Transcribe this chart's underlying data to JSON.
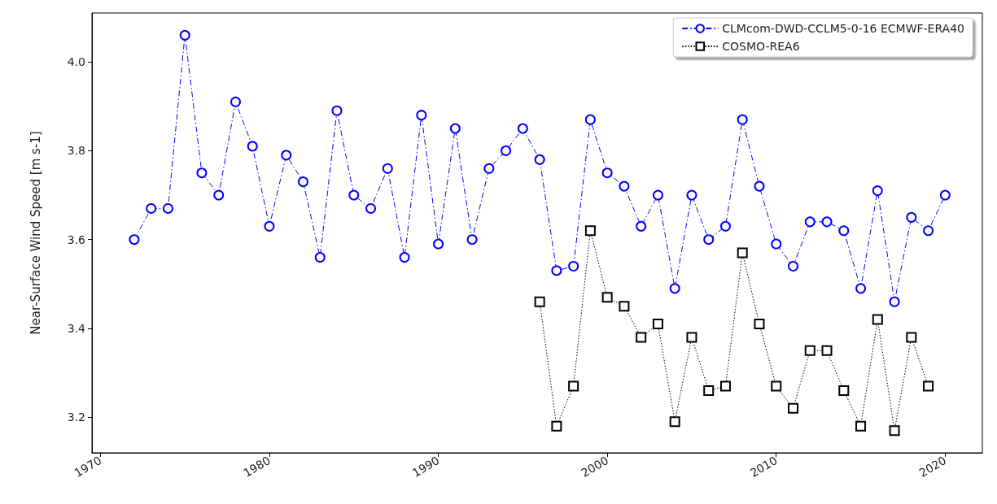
{
  "chart_data": {
    "type": "line",
    "ylabel": "Near-Surface Wind Speed [m s-1]",
    "xlim": [
      1969.5,
      2022.2
    ],
    "xticks": [
      1970,
      1980,
      1990,
      2000,
      2010,
      2020
    ],
    "ylim": [
      3.12,
      4.11
    ],
    "yticks": [
      3.2,
      3.4,
      3.6,
      3.8,
      {
        "value": 4.0,
        "label": "4.0"
      }
    ],
    "grid": false,
    "legend": "top right",
    "series": [
      {
        "name": "CLMcom-DWD-CCLM5-0-16 ECMWF-ERA40",
        "color": "#0000ff",
        "marker": "circle",
        "line_style": "dashed",
        "x": [
          1972,
          1973,
          1974,
          1975,
          1976,
          1977,
          1978,
          1979,
          1980,
          1981,
          1982,
          1983,
          1984,
          1985,
          1986,
          1987,
          1988,
          1989,
          1990,
          1991,
          1992,
          1993,
          1994,
          1995,
          1996,
          1997,
          1998,
          1999,
          2000,
          2001,
          2002,
          2003,
          2004,
          2005,
          2006,
          2007,
          2008,
          2009,
          2010,
          2011,
          2012,
          2013,
          2014,
          2015,
          2016,
          2017,
          2018,
          2019,
          2020
        ],
        "values": [
          3.6,
          3.67,
          3.67,
          4.06,
          3.75,
          3.7,
          3.91,
          3.81,
          3.63,
          3.79,
          3.73,
          3.56,
          3.89,
          3.7,
          3.67,
          3.76,
          3.56,
          3.88,
          3.59,
          3.85,
          3.6,
          3.76,
          3.8,
          3.85,
          3.78,
          3.53,
          3.54,
          3.87,
          3.75,
          3.72,
          3.63,
          3.7,
          3.49,
          3.7,
          3.6,
          3.63,
          3.87,
          3.72,
          3.59,
          3.54,
          3.64,
          3.64,
          3.62,
          3.49,
          3.71,
          3.46,
          3.65,
          3.62,
          3.7
        ]
      },
      {
        "name": "COSMO-REA6",
        "color": "#000000",
        "marker": "square",
        "line_style": "dotted",
        "x": [
          1996,
          1997,
          1998,
          1999,
          2000,
          2001,
          2002,
          2003,
          2004,
          2005,
          2006,
          2007,
          2008,
          2009,
          2010,
          2011,
          2012,
          2013,
          2014,
          2015,
          2016,
          2017,
          2018,
          2019
        ],
        "values": [
          3.46,
          3.18,
          3.27,
          3.62,
          3.47,
          3.45,
          3.38,
          3.41,
          3.19,
          3.38,
          3.26,
          3.27,
          3.57,
          3.41,
          3.27,
          3.22,
          3.35,
          3.35,
          3.26,
          3.18,
          3.42,
          3.17,
          3.38,
          3.27
        ]
      }
    ]
  }
}
